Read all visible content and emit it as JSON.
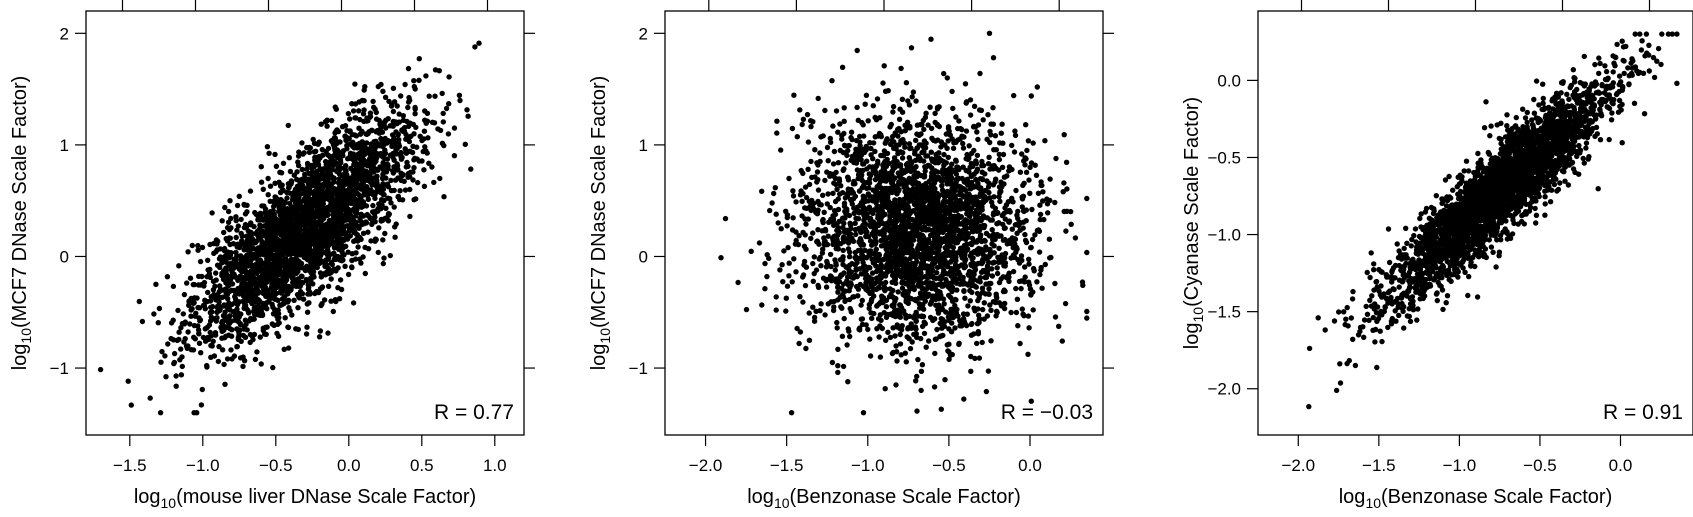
{
  "chart_data": [
    {
      "type": "scatter",
      "xlabel": {
        "pre": "log",
        "sub": "10",
        "post": "(mouse liver DNase Scale Factor)"
      },
      "ylabel": {
        "pre": "log",
        "sub": "10",
        "post": "(MCF7 DNase Scale Factor)"
      },
      "annotation": "R = 0.77",
      "correlation": 0.77,
      "xlim": [
        -1.8,
        1.2
      ],
      "ylim": [
        -1.6,
        2.2
      ],
      "xticks": [
        -1.5,
        -1.0,
        -0.5,
        0.0,
        0.5,
        1.0
      ],
      "xtick_labels": [
        "−1.5",
        "−1.0",
        "−0.5",
        "0.0",
        "0.5",
        "1.0"
      ],
      "yticks": [
        -1,
        0,
        1,
        2
      ],
      "ytick_labels": [
        "−1",
        "0",
        "1",
        "2"
      ],
      "grid": false,
      "point_cloud": {
        "n": 3000,
        "x_mean": -0.3,
        "x_sd": 0.38,
        "y_mean": 0.25,
        "y_sd": 0.5,
        "x_range": [
          -1.7,
          1.0
        ],
        "y_range": [
          -1.4,
          2.0
        ]
      }
    },
    {
      "type": "scatter",
      "xlabel": {
        "pre": "log",
        "sub": "10",
        "post": "(Benzonase Scale Factor)"
      },
      "ylabel": {
        "pre": "log",
        "sub": "10",
        "post": "(MCF7 DNase Scale Factor)"
      },
      "annotation": "R = −0.03",
      "correlation": -0.03,
      "xlim": [
        -2.25,
        0.45
      ],
      "ylim": [
        -1.6,
        2.2
      ],
      "xticks": [
        -2.0,
        -1.5,
        -1.0,
        -0.5,
        0.0
      ],
      "xtick_labels": [
        "−2.0",
        "−1.5",
        "−1.0",
        "−0.5",
        "0.0"
      ],
      "yticks": [
        -1,
        0,
        1,
        2
      ],
      "ytick_labels": [
        "−1",
        "0",
        "1",
        "2"
      ],
      "grid": false,
      "point_cloud": {
        "n": 3000,
        "x_mean": -0.7,
        "x_sd": 0.35,
        "y_mean": 0.25,
        "y_sd": 0.5,
        "x_range": [
          -2.15,
          0.35
        ],
        "y_range": [
          -1.4,
          2.0
        ]
      }
    },
    {
      "type": "scatter",
      "xlabel": {
        "pre": "log",
        "sub": "10",
        "post": "(Benzonase Scale Factor)"
      },
      "ylabel": {
        "pre": "log",
        "sub": "10",
        "post": "(Cyanase Scale Factor)"
      },
      "annotation": "R = 0.91",
      "correlation": 0.91,
      "xlim": [
        -2.25,
        0.45
      ],
      "ylim": [
        -2.3,
        0.45
      ],
      "xticks": [
        -2.0,
        -1.5,
        -1.0,
        -0.5,
        0.0
      ],
      "xtick_labels": [
        "−2.0",
        "−1.5",
        "−1.0",
        "−0.5",
        "0.0"
      ],
      "yticks": [
        -2.0,
        -1.5,
        -1.0,
        -0.5,
        0.0
      ],
      "ytick_labels": [
        "−2.0",
        "−1.5",
        "−1.0",
        "−0.5",
        "0.0"
      ],
      "grid": false,
      "point_cloud": {
        "n": 3000,
        "x_mean": -0.75,
        "x_sd": 0.35,
        "y_mean": -0.72,
        "y_sd": 0.36,
        "x_range": [
          -2.15,
          0.35
        ],
        "y_range": [
          -2.2,
          0.3
        ]
      }
    }
  ]
}
